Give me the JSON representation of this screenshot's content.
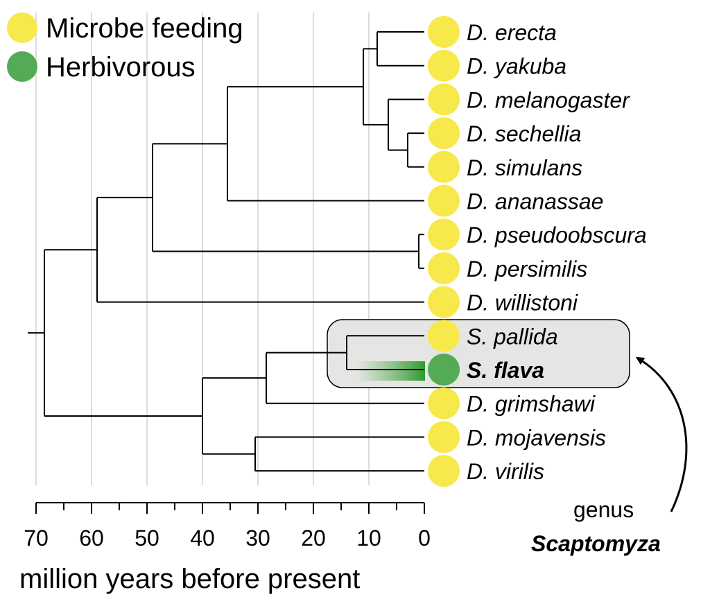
{
  "legend": [
    {
      "label": "Microbe feeding",
      "color": "#f7e94b"
    },
    {
      "label": "Herbivorous",
      "color": "#55aa55"
    }
  ],
  "species": [
    {
      "name": "D. erecta",
      "diet": "microbe",
      "bold": false
    },
    {
      "name": "D. yakuba",
      "diet": "microbe",
      "bold": false
    },
    {
      "name": "D. melanogaster",
      "diet": "microbe",
      "bold": false
    },
    {
      "name": "D. sechellia",
      "diet": "microbe",
      "bold": false
    },
    {
      "name": "D. simulans",
      "diet": "microbe",
      "bold": false
    },
    {
      "name": "D. ananassae",
      "diet": "microbe",
      "bold": false
    },
    {
      "name": "D. pseudoobscura",
      "diet": "microbe",
      "bold": false
    },
    {
      "name": "D. persimilis",
      "diet": "microbe",
      "bold": false
    },
    {
      "name": "D. willistoni",
      "diet": "microbe",
      "bold": false
    },
    {
      "name": "S. pallida",
      "diet": "microbe",
      "bold": false
    },
    {
      "name": "S. flava",
      "diet": "herbivore",
      "bold": true
    },
    {
      "name": "D. grimshawi",
      "diet": "microbe",
      "bold": false
    },
    {
      "name": "D. mojavensis",
      "diet": "microbe",
      "bold": false
    },
    {
      "name": "D. virilis",
      "diet": "microbe",
      "bold": false
    }
  ],
  "nodes_mya": {
    "erecta_yakuba": 8.5,
    "sechellia_simulans": 3,
    "melanogaster_group": 6.5,
    "melanogaster_subgroup": 11,
    "with_ananassae": 35.5,
    "pseudoobscura_persimilis": 1,
    "with_obscura": 49,
    "with_willistoni": 59,
    "scaptomyza": 14,
    "with_grimshawi": 28.5,
    "mojavensis_virilis": 30.5,
    "drosophila_subgenus": 40,
    "root": 68.5
  },
  "axis": {
    "title": "million years before present",
    "ticks": [
      "70",
      "60",
      "50",
      "40",
      "30",
      "20",
      "10",
      "0"
    ]
  },
  "annotation": {
    "line1": "genus",
    "line2": "Scaptomyza"
  },
  "colors": {
    "microbe": "#f7e94b",
    "herbivore": "#55aa55",
    "highlight_fill": "#e5e5e3",
    "grid": "#c8c8c8"
  }
}
